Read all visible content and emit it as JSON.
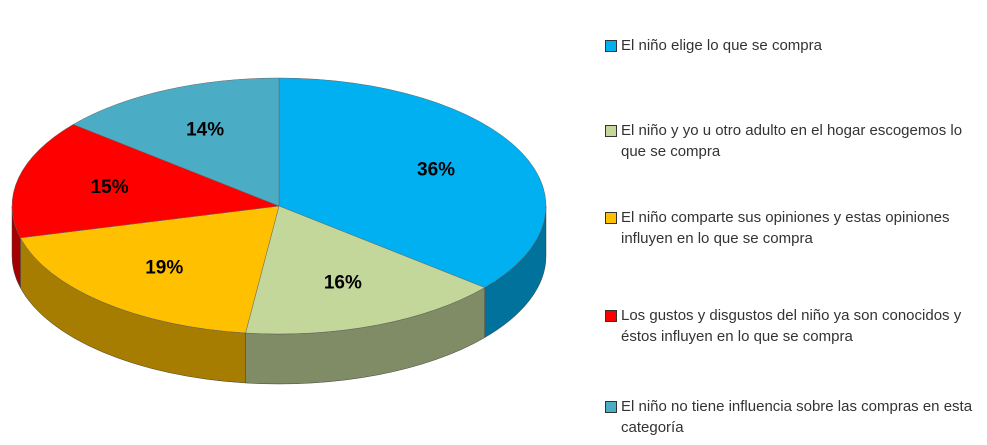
{
  "chart_data": {
    "type": "pie",
    "categories": [
      "El niño elige lo que se compra",
      "El niño y yo u otro adulto en el hogar escogemos lo que se compra",
      "El niño comparte sus opiniones y estas opiniones influyen en lo que se compra",
      "Los gustos y disgustos del niño ya son conocidos y éstos influyen en lo que se compra",
      "El niño no tiene influencia sobre las compras en esta categoría"
    ],
    "values": [
      36,
      16,
      19,
      15,
      14
    ],
    "value_labels": [
      "36%",
      "16%",
      "19%",
      "15%",
      "14%"
    ],
    "colors": [
      "#00b0f0",
      "#c4d79b",
      "#ffc000",
      "#ff0000",
      "#4bacc6"
    ],
    "legend": "right"
  }
}
